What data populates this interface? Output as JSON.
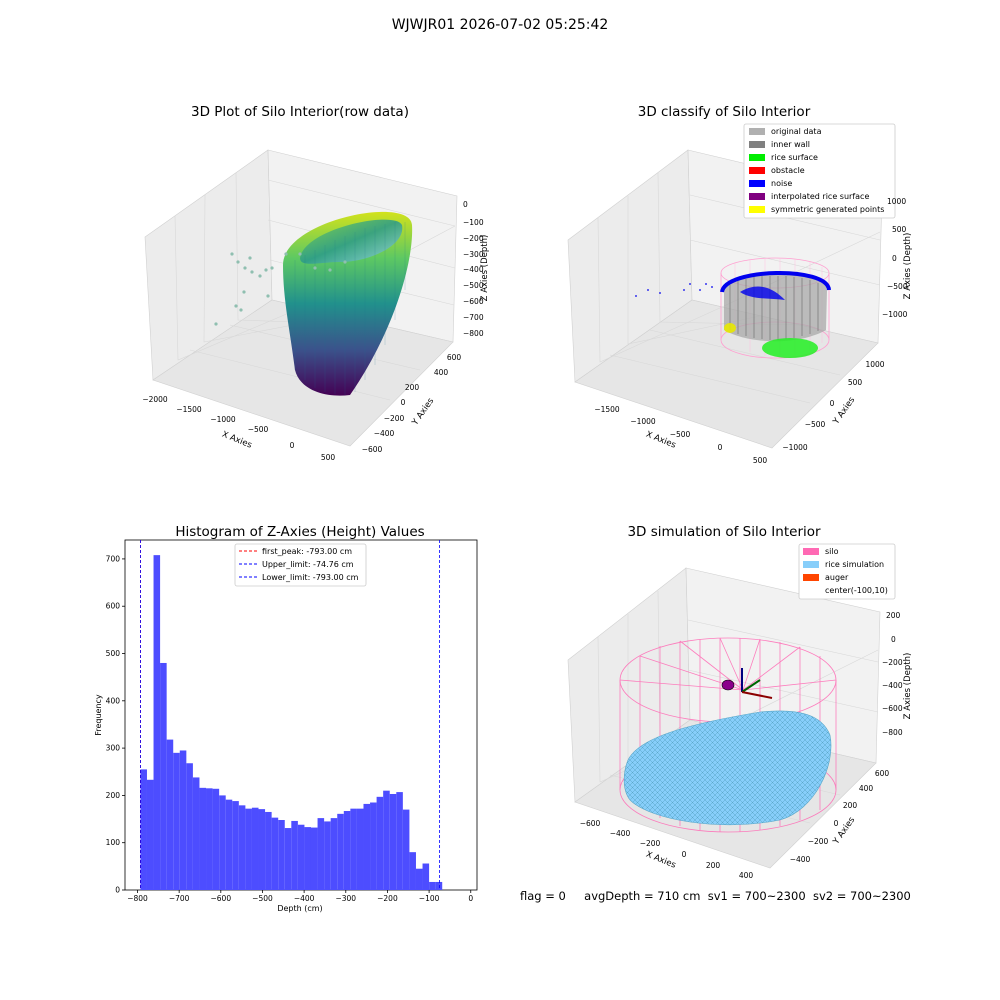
{
  "figure": {
    "suptitle": "WJWJR01 2026-07-02 05:25:42",
    "status_line": {
      "flag": "flag = 0",
      "avg_depth": "avgDepth = 710 cm",
      "sv1": "sv1 = 700~2300",
      "sv2": "sv2 = 700~2300"
    }
  },
  "colors": {
    "hist_bar": "#4d4dff",
    "peak_line": "#ff0000",
    "limit_line": "#0000ff",
    "silo_wire": "#ff69b4",
    "rice_sim": "#87cefa",
    "inner_wall": "#909090",
    "rice_surface": "#22ee22",
    "noise": "#0000ee"
  },
  "chart_data": [
    {
      "type": "scatter",
      "title": "3D Plot of Silo Interior(row data)",
      "xlabel": "X Axies",
      "ylabel": "Y Axies",
      "zlabel": "Z Axies (Depth)",
      "x_ticks": [
        "−2000",
        "−1500",
        "−1000",
        "−500",
        "0",
        "500"
      ],
      "y_ticks": [
        "−600",
        "−400",
        "−200",
        "0",
        "200",
        "400",
        "600"
      ],
      "z_ticks": [
        "0",
        "−100",
        "−200",
        "−300",
        "−400",
        "−500",
        "−600",
        "−700",
        "−800"
      ],
      "colormap": "viridis"
    },
    {
      "type": "scatter",
      "title": "3D classify of Silo Interior",
      "xlabel": "X Axies",
      "ylabel": "Y Axies",
      "zlabel": "Z Axies (Depth)",
      "x_ticks": [
        "−1500",
        "−1000",
        "−500",
        "0",
        "500"
      ],
      "y_ticks": [
        "−1000",
        "−500",
        "0",
        "500",
        "1000"
      ],
      "z_ticks": [
        "1000",
        "500",
        "0",
        "−500",
        "−1000"
      ],
      "legend_position": "top-right",
      "legend": [
        {
          "label": "original data",
          "color": "#b0b0b0"
        },
        {
          "label": "inner wall",
          "color": "#808080"
        },
        {
          "label": "rice surface",
          "color": "#00ee00"
        },
        {
          "label": "obstacle",
          "color": "#ff0000"
        },
        {
          "label": "noise",
          "color": "#0000ff"
        },
        {
          "label": "interpolated rice surface",
          "color": "#800080"
        },
        {
          "label": "symmetric generated points",
          "color": "#ffff00"
        }
      ]
    },
    {
      "type": "bar",
      "title": "Histogram of Z-Axies (Height) Values",
      "xlabel": "Depth (cm)",
      "ylabel": "Frequency",
      "xlim": [
        -830,
        15
      ],
      "ylim": [
        0,
        740
      ],
      "x_ticks": [
        -800,
        -700,
        -600,
        -500,
        -400,
        -300,
        -200,
        -100,
        0
      ],
      "y_ticks": [
        0,
        100,
        200,
        300,
        400,
        500,
        600,
        700
      ],
      "grid": false,
      "bin_width": 15.75,
      "bin_start": -793,
      "values": [
        255,
        233,
        708,
        480,
        318,
        290,
        295,
        268,
        238,
        216,
        215,
        214,
        200,
        191,
        188,
        179,
        172,
        174,
        171,
        165,
        153,
        148,
        131,
        146,
        138,
        133,
        132,
        152,
        145,
        152,
        161,
        167,
        172,
        172,
        182,
        185,
        197,
        210,
        203,
        207,
        170,
        80,
        45,
        56,
        17,
        17
      ],
      "lines": [
        {
          "label": "first_peak: -793.00 cm",
          "x": -793,
          "style": "dashed",
          "color": "#ff0000"
        },
        {
          "label": "Upper_limit: -74.76 cm",
          "x": -74.76,
          "style": "dashed",
          "color": "#0000ff"
        },
        {
          "label": "Lower_limit: -793.00 cm",
          "x": -793,
          "style": "dashed",
          "color": "#0000ff"
        }
      ],
      "legend_position": "top-center"
    },
    {
      "type": "scatter",
      "title": "3D simulation of Silo Interior",
      "xlabel": "X Axies",
      "ylabel": "Y Axies",
      "zlabel": "Z Axies (Depth)",
      "x_ticks": [
        "−600",
        "−400",
        "−200",
        "0",
        "200",
        "400"
      ],
      "y_ticks": [
        "−400",
        "−200",
        "0",
        "200",
        "400",
        "600"
      ],
      "z_ticks": [
        "200",
        "0",
        "−200",
        "−400",
        "−600",
        "−800"
      ],
      "legend_position": "top-right",
      "legend": [
        {
          "label": "silo",
          "color": "#ff69b4"
        },
        {
          "label": "rice simulation",
          "color": "#87cefa"
        },
        {
          "label": "auger",
          "color": "#ff4500"
        },
        {
          "label": "center(-100,10)",
          "color": ""
        }
      ]
    }
  ]
}
